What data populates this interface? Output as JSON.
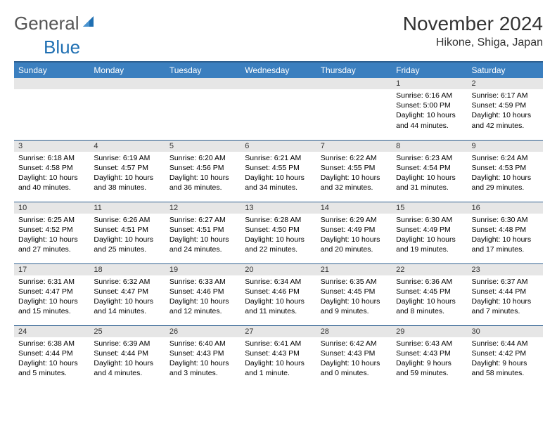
{
  "logo": {
    "text_left": "General",
    "text_right": "Blue"
  },
  "title": "November 2024",
  "location": "Hikone, Shiga, Japan",
  "colors": {
    "header_bg": "#3b7fbf",
    "header_border": "#2e5f8f",
    "daynum_bg": "#e6e6e6",
    "logo_blue": "#1f6fb2"
  },
  "day_headers": [
    "Sunday",
    "Monday",
    "Tuesday",
    "Wednesday",
    "Thursday",
    "Friday",
    "Saturday"
  ],
  "weeks": [
    [
      null,
      null,
      null,
      null,
      null,
      {
        "n": "1",
        "sr": "6:16 AM",
        "ss": "5:00 PM",
        "dl": "10 hours and 44 minutes."
      },
      {
        "n": "2",
        "sr": "6:17 AM",
        "ss": "4:59 PM",
        "dl": "10 hours and 42 minutes."
      }
    ],
    [
      {
        "n": "3",
        "sr": "6:18 AM",
        "ss": "4:58 PM",
        "dl": "10 hours and 40 minutes."
      },
      {
        "n": "4",
        "sr": "6:19 AM",
        "ss": "4:57 PM",
        "dl": "10 hours and 38 minutes."
      },
      {
        "n": "5",
        "sr": "6:20 AM",
        "ss": "4:56 PM",
        "dl": "10 hours and 36 minutes."
      },
      {
        "n": "6",
        "sr": "6:21 AM",
        "ss": "4:55 PM",
        "dl": "10 hours and 34 minutes."
      },
      {
        "n": "7",
        "sr": "6:22 AM",
        "ss": "4:55 PM",
        "dl": "10 hours and 32 minutes."
      },
      {
        "n": "8",
        "sr": "6:23 AM",
        "ss": "4:54 PM",
        "dl": "10 hours and 31 minutes."
      },
      {
        "n": "9",
        "sr": "6:24 AM",
        "ss": "4:53 PM",
        "dl": "10 hours and 29 minutes."
      }
    ],
    [
      {
        "n": "10",
        "sr": "6:25 AM",
        "ss": "4:52 PM",
        "dl": "10 hours and 27 minutes."
      },
      {
        "n": "11",
        "sr": "6:26 AM",
        "ss": "4:51 PM",
        "dl": "10 hours and 25 minutes."
      },
      {
        "n": "12",
        "sr": "6:27 AM",
        "ss": "4:51 PM",
        "dl": "10 hours and 24 minutes."
      },
      {
        "n": "13",
        "sr": "6:28 AM",
        "ss": "4:50 PM",
        "dl": "10 hours and 22 minutes."
      },
      {
        "n": "14",
        "sr": "6:29 AM",
        "ss": "4:49 PM",
        "dl": "10 hours and 20 minutes."
      },
      {
        "n": "15",
        "sr": "6:30 AM",
        "ss": "4:49 PM",
        "dl": "10 hours and 19 minutes."
      },
      {
        "n": "16",
        "sr": "6:30 AM",
        "ss": "4:48 PM",
        "dl": "10 hours and 17 minutes."
      }
    ],
    [
      {
        "n": "17",
        "sr": "6:31 AM",
        "ss": "4:47 PM",
        "dl": "10 hours and 15 minutes."
      },
      {
        "n": "18",
        "sr": "6:32 AM",
        "ss": "4:47 PM",
        "dl": "10 hours and 14 minutes."
      },
      {
        "n": "19",
        "sr": "6:33 AM",
        "ss": "4:46 PM",
        "dl": "10 hours and 12 minutes."
      },
      {
        "n": "20",
        "sr": "6:34 AM",
        "ss": "4:46 PM",
        "dl": "10 hours and 11 minutes."
      },
      {
        "n": "21",
        "sr": "6:35 AM",
        "ss": "4:45 PM",
        "dl": "10 hours and 9 minutes."
      },
      {
        "n": "22",
        "sr": "6:36 AM",
        "ss": "4:45 PM",
        "dl": "10 hours and 8 minutes."
      },
      {
        "n": "23",
        "sr": "6:37 AM",
        "ss": "4:44 PM",
        "dl": "10 hours and 7 minutes."
      }
    ],
    [
      {
        "n": "24",
        "sr": "6:38 AM",
        "ss": "4:44 PM",
        "dl": "10 hours and 5 minutes."
      },
      {
        "n": "25",
        "sr": "6:39 AM",
        "ss": "4:44 PM",
        "dl": "10 hours and 4 minutes."
      },
      {
        "n": "26",
        "sr": "6:40 AM",
        "ss": "4:43 PM",
        "dl": "10 hours and 3 minutes."
      },
      {
        "n": "27",
        "sr": "6:41 AM",
        "ss": "4:43 PM",
        "dl": "10 hours and 1 minute."
      },
      {
        "n": "28",
        "sr": "6:42 AM",
        "ss": "4:43 PM",
        "dl": "10 hours and 0 minutes."
      },
      {
        "n": "29",
        "sr": "6:43 AM",
        "ss": "4:43 PM",
        "dl": "9 hours and 59 minutes."
      },
      {
        "n": "30",
        "sr": "6:44 AM",
        "ss": "4:42 PM",
        "dl": "9 hours and 58 minutes."
      }
    ]
  ],
  "labels": {
    "sunrise": "Sunrise: ",
    "sunset": "Sunset: ",
    "daylight": "Daylight: "
  }
}
